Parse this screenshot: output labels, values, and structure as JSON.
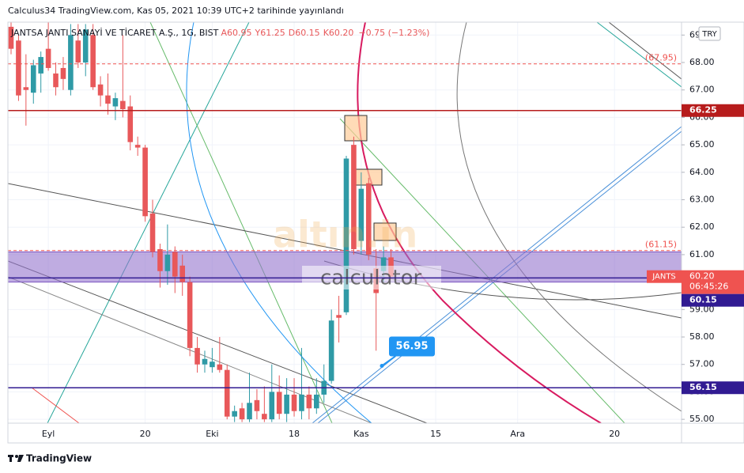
{
  "header": "Calculus34 TradingView.com, Kas 05, 2021 10:39 UTC+2 tarihinde yayınlandı",
  "footer": "TradingView",
  "watermark": {
    "brand": "altın.in",
    "name": "calculator"
  },
  "chart_data": {
    "type": "candlestick",
    "symbol_label": "JANTSA JANTI SANAYİ VE TİCARET A.Ş., 1G, BIST",
    "ohlc_label": {
      "open": "A60.95",
      "high": "Y61.25",
      "low": "D60.15",
      "close": "K60.20",
      "change": "−0.75 (−1.23%)"
    },
    "currency": "TRY",
    "categories": [
      null,
      null,
      null,
      null,
      null,
      "Eyl",
      null,
      null,
      null,
      null,
      null,
      null,
      null,
      null,
      null,
      null,
      null,
      null,
      "20",
      null,
      null,
      null,
      null,
      null,
      null,
      null,
      null,
      "Eki",
      null,
      null,
      null,
      null,
      null,
      null,
      null,
      null,
      null,
      null,
      "18",
      null,
      null,
      null,
      null,
      null,
      null,
      null,
      null,
      "Kas",
      null,
      null,
      null,
      null,
      null,
      null,
      null,
      null,
      null,
      "15",
      null,
      null,
      null,
      null,
      null,
      null,
      null,
      null,
      null,
      null,
      "Ara",
      null,
      null,
      null,
      null,
      null,
      null,
      null,
      null,
      null,
      null,
      null,
      null,
      "20",
      null,
      null,
      null,
      null,
      null,
      null,
      null,
      null,
      null
    ],
    "series": [
      {
        "up_color": "#2f9aa6",
        "down_color": "#e8585a",
        "open": [
          69.3,
          68.8,
          67.1,
          66.9,
          67.6,
          68.5,
          67.6,
          67.8,
          67.0,
          68.8,
          68.0,
          69.0,
          67.2,
          66.8,
          66.4,
          66.6,
          66.4,
          65.0,
          64.9,
          62.5,
          61.2,
          60.4,
          61.1,
          60.6,
          60.0,
          57.6,
          57.0,
          56.9,
          57.0,
          56.8,
          55.1,
          55.4,
          55.0,
          55.7,
          55.2,
          55.0,
          56.0,
          55.2,
          55.9,
          55.3,
          55.9,
          55.4,
          55.9,
          56.4,
          58.8,
          58.9,
          65.0,
          61.5,
          63.6,
          60.5,
          60.4,
          60.9,
          null,
          null,
          null,
          null,
          null,
          null,
          null,
          null,
          null,
          null,
          null,
          null,
          null,
          null,
          null,
          null,
          null,
          null,
          null,
          null,
          null,
          null,
          null,
          null,
          null,
          null,
          null,
          null,
          null,
          null,
          null,
          null,
          null,
          null,
          null,
          null,
          null,
          null,
          null
        ],
        "high": [
          69.5,
          69.0,
          68.3,
          68.1,
          68.4,
          69.5,
          68.0,
          68.2,
          69.4,
          69.4,
          69.4,
          69.4,
          67.5,
          67.6,
          66.9,
          69.0,
          66.8,
          65.3,
          65.0,
          63.0,
          61.4,
          62.1,
          61.3,
          61.0,
          60.2,
          58.0,
          57.5,
          57.6,
          58.0,
          57.0,
          55.5,
          55.6,
          56.7,
          56.1,
          56.2,
          57.0,
          56.6,
          56.5,
          56.5,
          57.6,
          56.2,
          56.5,
          57.0,
          59.0,
          59.5,
          64.6,
          65.3,
          64.0,
          63.8,
          61.2,
          61.3,
          61.2,
          null,
          null,
          null,
          null,
          null,
          null,
          null,
          null,
          null,
          null,
          null,
          null,
          null,
          null,
          null,
          null,
          null,
          null,
          null,
          null,
          null,
          null,
          null,
          null,
          null,
          null,
          null,
          null,
          null,
          null,
          null,
          null,
          null,
          null,
          null,
          null,
          null,
          null,
          null
        ],
        "low": [
          68.3,
          66.6,
          65.7,
          66.5,
          66.9,
          67.7,
          66.8,
          67.0,
          66.8,
          67.8,
          67.5,
          67.0,
          66.4,
          66.1,
          65.9,
          66.0,
          64.8,
          64.6,
          62.2,
          60.9,
          59.8,
          59.9,
          59.6,
          59.5,
          57.3,
          56.7,
          56.7,
          56.7,
          56.7,
          55.0,
          54.9,
          54.9,
          54.9,
          55.0,
          54.9,
          54.9,
          55.0,
          54.9,
          55.1,
          55.0,
          55.0,
          55.2,
          55.6,
          56.3,
          57.8,
          58.8,
          61.0,
          61.0,
          60.8,
          57.5,
          60.0,
          60.1,
          null,
          null,
          null,
          null,
          null,
          null,
          null,
          null,
          null,
          null,
          null,
          null,
          null,
          null,
          null,
          null,
          null,
          null,
          null,
          null,
          null,
          null,
          null,
          null,
          null,
          null,
          null,
          null,
          null,
          null,
          null,
          null,
          null,
          null,
          null,
          null,
          null,
          null,
          null
        ],
        "close": [
          68.5,
          66.8,
          67.0,
          67.9,
          68.2,
          67.8,
          67.1,
          67.4,
          69.0,
          68.0,
          69.2,
          67.1,
          66.8,
          66.5,
          66.7,
          66.3,
          65.1,
          64.9,
          62.4,
          61.1,
          60.4,
          61.0,
          60.2,
          60.0,
          57.6,
          57.0,
          57.2,
          57.1,
          56.8,
          55.1,
          55.3,
          55.0,
          55.6,
          55.3,
          55.0,
          56.0,
          55.2,
          55.9,
          55.3,
          55.9,
          55.4,
          55.9,
          56.4,
          58.6,
          58.7,
          64.5,
          61.2,
          63.4,
          61.0,
          59.6,
          60.9,
          60.2,
          null,
          null,
          null,
          null,
          null,
          null,
          null,
          null,
          null,
          null,
          null,
          null,
          null,
          null,
          null,
          null,
          null,
          null,
          null,
          null,
          null,
          null,
          null,
          null,
          null,
          null,
          null,
          null,
          null,
          null,
          null,
          null,
          null,
          null,
          null,
          null,
          null,
          null,
          null
        ]
      }
    ],
    "ylim": [
      54.86,
      69.47
    ],
    "yticks": [
      {
        "value": 55,
        "label": "55.00"
      },
      {
        "value": 56,
        "label": "56.00"
      },
      {
        "value": 57,
        "label": "57.00"
      },
      {
        "value": 58,
        "label": "58.00"
      },
      {
        "value": 59,
        "label": "59.00"
      },
      {
        "value": 60,
        "label": "60.00"
      },
      {
        "value": 61,
        "label": "61.00"
      },
      {
        "value": 62,
        "label": "62.00"
      },
      {
        "value": 63,
        "label": "63.00"
      },
      {
        "value": 64,
        "label": "64.00"
      },
      {
        "value": 65,
        "label": "65.00"
      },
      {
        "value": 66,
        "label": "66.00"
      },
      {
        "value": 67,
        "label": "67.00"
      },
      {
        "value": 68,
        "label": "68.00"
      },
      {
        "value": 69,
        "label": "69.00"
      }
    ],
    "grid": true,
    "zone": {
      "low": 60.0,
      "high": 61.1,
      "color": "#9575cd"
    },
    "price_lines": [
      {
        "value": 67.95,
        "label": "(67.95)",
        "color": "#ef5350",
        "style": "dashed"
      },
      {
        "value": 66.25,
        "label": "66.25",
        "color": "#b71c1c",
        "style": "solid"
      },
      {
        "value": 61.15,
        "label": "(61.15)",
        "color": "#ef5350",
        "style": "dashed"
      },
      {
        "value": 60.15,
        "label": "60.15",
        "color": "#311b92",
        "style": "solid"
      },
      {
        "value": 56.15,
        "label": "56.15",
        "color": "#311b92",
        "style": "solid"
      }
    ],
    "last_price": {
      "value": 60.2,
      "label": "60.20",
      "symbol": "JANTS",
      "countdown": "06:45:26",
      "color": "#ef5350"
    },
    "callout": {
      "value": 56.95,
      "label": "56.95",
      "color": "#2196f3"
    }
  }
}
